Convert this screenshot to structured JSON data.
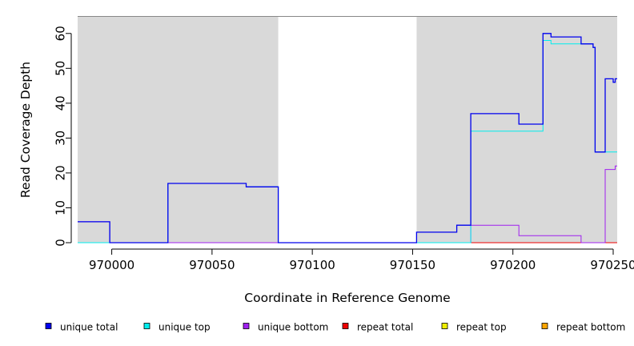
{
  "chart_data": {
    "type": "line",
    "title": "",
    "xlabel": "Coordinate in Reference Genome",
    "ylabel": "Read Coverage Depth",
    "xlim": [
      969983,
      970252
    ],
    "ylim": [
      0,
      65
    ],
    "xticks": [
      970000,
      970050,
      970100,
      970150,
      970200,
      970250
    ],
    "yticks": [
      0,
      10,
      20,
      30,
      40,
      50,
      60
    ],
    "background_color": "#d9d9d9",
    "unshaded_region": [
      970083,
      970152
    ],
    "grid": false,
    "legend_position": "bottom",
    "series": [
      {
        "name": "unique total",
        "color": "#0000ee",
        "x": [
          969983,
          969999,
          969999,
          970028,
          970028,
          970067,
          970067,
          970083,
          970083,
          970152,
          970152,
          970172,
          970172,
          970179,
          970179,
          970203,
          970203,
          970215,
          970215,
          970219,
          970219,
          970234,
          970234,
          970240,
          970240,
          970241,
          970241,
          970246,
          970246,
          970250,
          970250,
          970251,
          970251,
          970252
        ],
        "y": [
          6,
          6,
          0,
          0,
          17,
          17,
          16,
          16,
          0,
          0,
          3,
          3,
          5,
          5,
          37,
          37,
          34,
          34,
          60,
          60,
          59,
          59,
          57,
          57,
          56,
          56,
          26,
          26,
          47,
          47,
          46,
          46,
          47,
          47
        ]
      },
      {
        "name": "unique top",
        "color": "#00eeee",
        "x": [
          969983,
          970028,
          970028,
          970067,
          970067,
          970083,
          970083,
          970179,
          970179,
          970215,
          970215,
          970219,
          970219,
          970234,
          970234,
          970240,
          970240,
          970241,
          970241,
          970246,
          970246,
          970252
        ],
        "y": [
          0,
          0,
          17,
          17,
          16,
          16,
          0,
          0,
          32,
          32,
          58,
          58,
          57,
          57,
          57,
          57,
          56,
          56,
          26,
          26,
          26,
          26
        ]
      },
      {
        "name": "unique bottom",
        "color": "#a020f0",
        "x": [
          969983,
          969999,
          969999,
          970179,
          970179,
          970203,
          970203,
          970234,
          970234,
          970246,
          970246,
          970251,
          970251,
          970252
        ],
        "y": [
          6,
          6,
          0,
          0,
          5,
          5,
          2,
          2,
          0,
          0,
          21,
          21,
          22,
          22
        ]
      },
      {
        "name": "repeat total",
        "color": "#ee0000",
        "x": [
          969983,
          970252
        ],
        "y": [
          0,
          0
        ]
      },
      {
        "name": "repeat top",
        "color": "#eeee00",
        "x": [
          969983,
          970252
        ],
        "y": [
          0,
          0
        ]
      },
      {
        "name": "repeat bottom",
        "color": "#ffa500",
        "x": [
          970179,
          970252
        ],
        "y": [
          0,
          0
        ]
      }
    ]
  }
}
